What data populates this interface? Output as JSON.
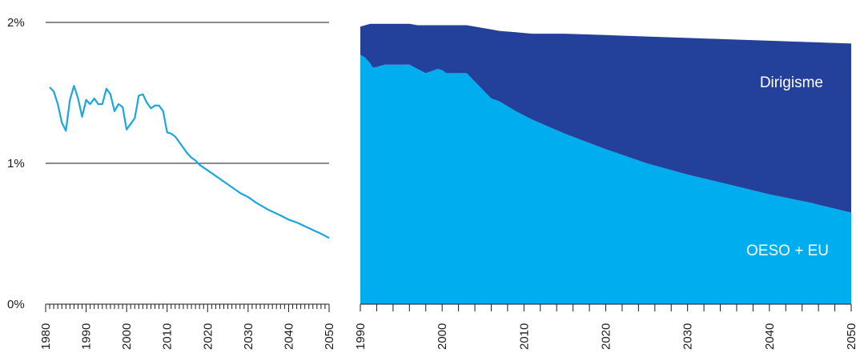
{
  "chart_data": [
    {
      "type": "line",
      "xlim": [
        1980,
        2050
      ],
      "ylim": [
        0,
        2
      ],
      "y_ticks": [
        {
          "value": 2,
          "label": "2%"
        },
        {
          "value": 1,
          "label": "1%"
        },
        {
          "value": 0,
          "label": "0%"
        }
      ],
      "x_tick_labels": [
        1980,
        1990,
        2000,
        2010,
        2020,
        2030,
        2040,
        2050
      ],
      "grid": true,
      "line_color": "#1aa6e0",
      "series": [
        {
          "x": [
            1981,
            1982,
            1983,
            1984,
            1985,
            1986,
            1987,
            1988,
            1989,
            1990,
            1991,
            1992,
            1993,
            1994,
            1995,
            1996,
            1997,
            1998,
            1999,
            2000,
            2001,
            2002,
            2003,
            2004,
            2005,
            2006,
            2007,
            2008,
            2009,
            2010,
            2011,
            2012,
            2013,
            2014,
            2015,
            2016,
            2017,
            2018,
            2019,
            2020,
            2022,
            2025,
            2028,
            2030,
            2032,
            2035,
            2038,
            2040,
            2042,
            2045,
            2048,
            2050
          ],
          "y": [
            1.54,
            1.51,
            1.42,
            1.29,
            1.23,
            1.45,
            1.55,
            1.46,
            1.33,
            1.45,
            1.42,
            1.46,
            1.42,
            1.42,
            1.53,
            1.49,
            1.37,
            1.42,
            1.4,
            1.24,
            1.28,
            1.32,
            1.48,
            1.49,
            1.43,
            1.39,
            1.41,
            1.41,
            1.37,
            1.22,
            1.21,
            1.19,
            1.15,
            1.11,
            1.07,
            1.04,
            1.02,
            0.99,
            0.97,
            0.95,
            0.91,
            0.85,
            0.79,
            0.76,
            0.72,
            0.67,
            0.63,
            0.6,
            0.58,
            0.54,
            0.5,
            0.47
          ]
        }
      ]
    },
    {
      "type": "area",
      "xlim": [
        1990,
        2050
      ],
      "ylim": [
        0,
        2
      ],
      "x_tick_labels": [
        1990,
        2000,
        2010,
        2020,
        2030,
        2040,
        2050
      ],
      "stacked": true,
      "series": [
        {
          "name": "OESO + EU",
          "color": "#00adee",
          "x": [
            1990,
            1990.6,
            1991.2,
            1991.5,
            1991.8,
            1993,
            1994,
            1995,
            1996,
            1997,
            1998,
            1999,
            1999.5,
            2000,
            2000.5,
            2001,
            2003,
            2005,
            2006,
            2007,
            2009,
            2011,
            2015,
            2020,
            2025,
            2030,
            2035,
            2040,
            2045,
            2050
          ],
          "y": [
            1.77,
            1.75,
            1.71,
            1.68,
            1.68,
            1.7,
            1.7,
            1.7,
            1.7,
            1.67,
            1.64,
            1.66,
            1.67,
            1.66,
            1.64,
            1.64,
            1.64,
            1.52,
            1.46,
            1.44,
            1.37,
            1.31,
            1.21,
            1.1,
            1,
            0.92,
            0.85,
            0.78,
            0.72,
            0.65
          ]
        },
        {
          "name": "Dirigisme",
          "color": "#23419a",
          "x": [
            1990,
            1990.6,
            1991.2,
            1991.5,
            1991.8,
            1993,
            1994,
            1995,
            1996,
            1997,
            1998,
            1999,
            1999.5,
            2000,
            2000.5,
            2001,
            2003,
            2005,
            2006,
            2007,
            2009,
            2011,
            2015,
            2020,
            2025,
            2030,
            2035,
            2040,
            2045,
            2050
          ],
          "y": [
            0.2,
            0.23,
            0.28,
            0.31,
            0.31,
            0.29,
            0.29,
            0.29,
            0.29,
            0.31,
            0.34,
            0.32,
            0.31,
            0.32,
            0.34,
            0.34,
            0.34,
            0.44,
            0.49,
            0.5,
            0.56,
            0.61,
            0.71,
            0.81,
            0.9,
            0.97,
            1.03,
            1.09,
            1.14,
            1.2
          ]
        }
      ]
    }
  ]
}
